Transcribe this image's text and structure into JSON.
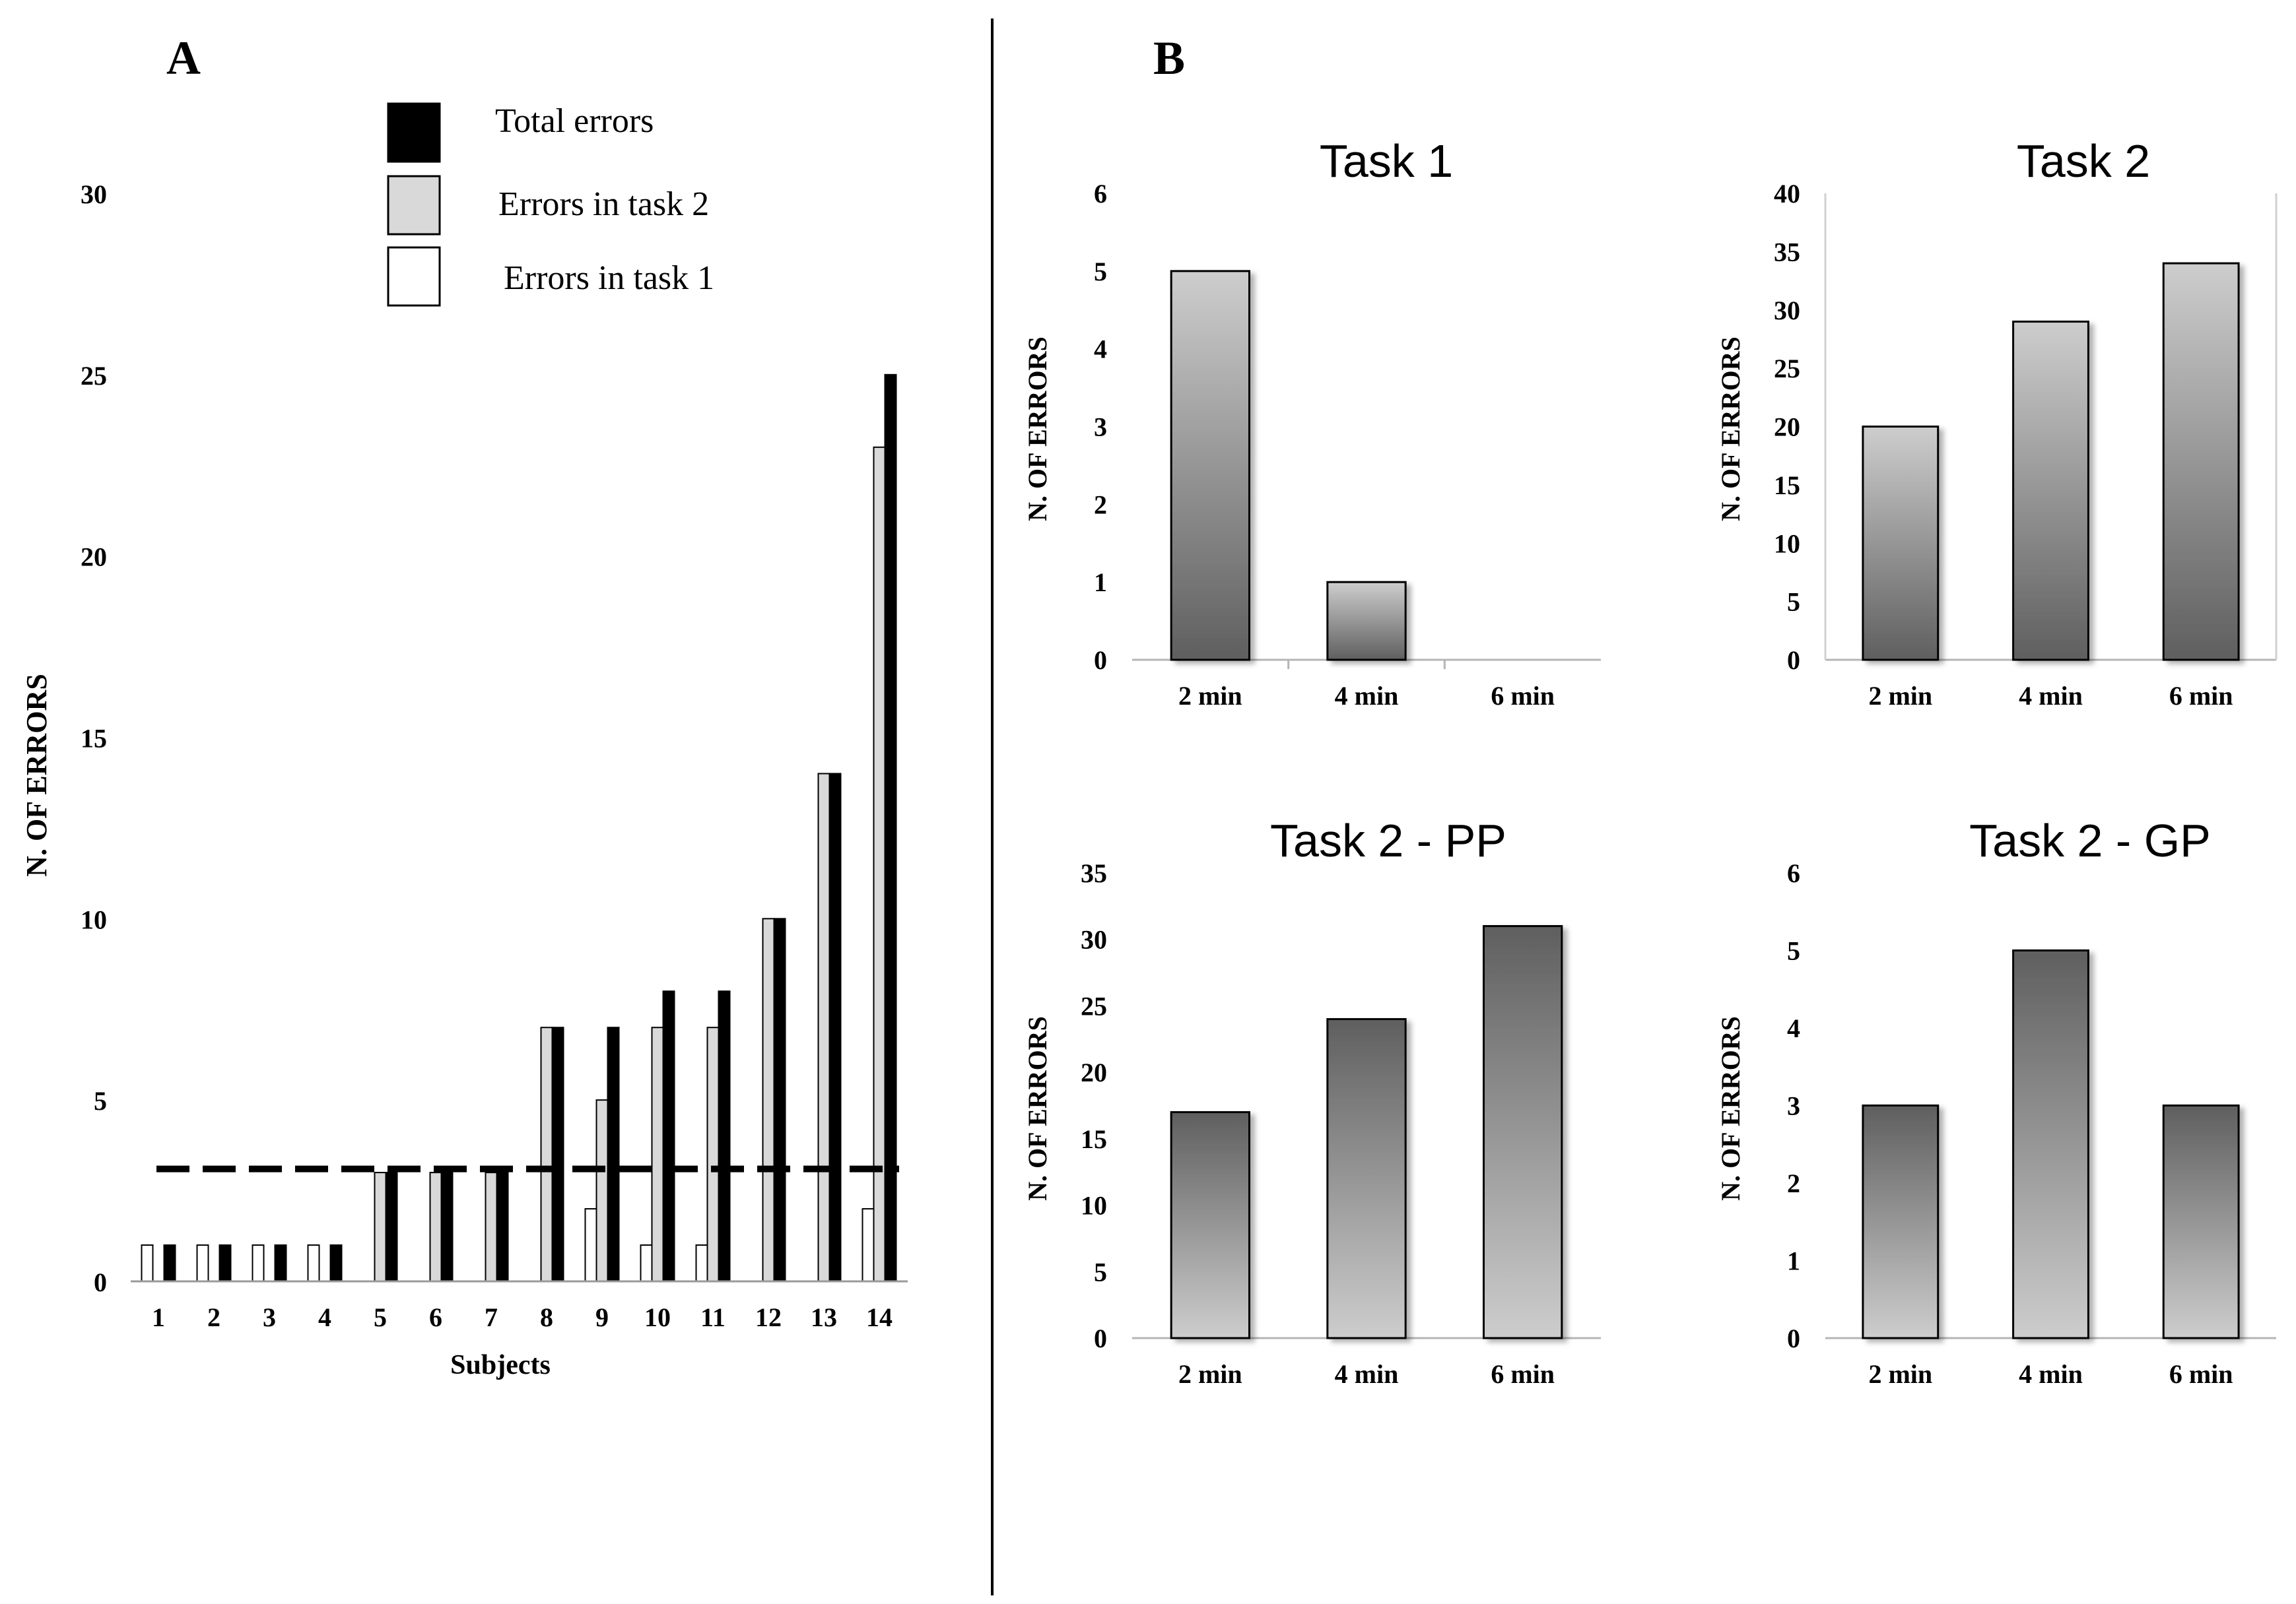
{
  "panel_a": {
    "label": "A",
    "chart_data": {
      "type": "bar",
      "title": "",
      "xlabel": "Subjects",
      "ylabel": "N. OF ERRORS",
      "ylim": [
        0,
        30
      ],
      "yticks": [
        "0",
        "5",
        "10",
        "15",
        "20",
        "25",
        "30"
      ],
      "categories": [
        "1",
        "2",
        "3",
        "4",
        "5",
        "6",
        "7",
        "8",
        "9",
        "10",
        "11",
        "12",
        "13",
        "14"
      ],
      "series": [
        {
          "name": "Errors in task 1",
          "color": "#ffffff",
          "values": [
            1,
            1,
            1,
            1,
            0,
            0,
            0,
            0,
            2,
            1,
            1,
            0,
            0,
            2
          ]
        },
        {
          "name": "Errors in task 2",
          "color": "#d9d9d9",
          "values": [
            0,
            0,
            0,
            0,
            3,
            3,
            3,
            7,
            5,
            7,
            7,
            10,
            14,
            23
          ]
        },
        {
          "name": "Total errors",
          "color": "#000000",
          "values": [
            1,
            1,
            1,
            1,
            3,
            3,
            3,
            7,
            7,
            8,
            8,
            10,
            14,
            25
          ]
        }
      ],
      "legend_order": [
        "Total errors",
        "Errors in task 2",
        "Errors in task 1"
      ],
      "legend_position": "top-center",
      "reference_line": {
        "value": 3.1,
        "style": "dashed"
      }
    }
  },
  "panel_b": {
    "label": "B",
    "chart_data": [
      {
        "type": "bar",
        "title": "Task 1",
        "ylabel": "N. OF ERRORS",
        "categories": [
          "2 min",
          "4 min",
          "6 min"
        ],
        "values": [
          5,
          1,
          0
        ],
        "ylim": [
          0,
          6
        ],
        "yticks": [
          "0",
          "1",
          "2",
          "3",
          "4",
          "5",
          "6"
        ],
        "gradient": "light-top"
      },
      {
        "type": "bar",
        "title": "Task 2",
        "ylabel": "N. OF ERRORS",
        "categories": [
          "2 min",
          "4 min",
          "6 min"
        ],
        "values": [
          20,
          29,
          34
        ],
        "ylim": [
          0,
          40
        ],
        "yticks": [
          "0",
          "5",
          "10",
          "15",
          "20",
          "25",
          "30",
          "35",
          "40"
        ],
        "gradient": "light-top"
      },
      {
        "type": "bar",
        "title": "Task 2 - PP",
        "ylabel": "N. OF ERRORS",
        "categories": [
          "2 min",
          "4 min",
          "6 min"
        ],
        "values": [
          17,
          24,
          31
        ],
        "ylim": [
          0,
          35
        ],
        "yticks": [
          "0",
          "5",
          "10",
          "15",
          "20",
          "25",
          "30",
          "35"
        ],
        "gradient": "dark-top"
      },
      {
        "type": "bar",
        "title": "Task 2 - GP",
        "ylabel": "N. OF ERRORS",
        "categories": [
          "2 min",
          "4 min",
          "6 min"
        ],
        "values": [
          3,
          5,
          3
        ],
        "ylim": [
          0,
          6
        ],
        "yticks": [
          "0",
          "1",
          "2",
          "3",
          "4",
          "5",
          "6"
        ],
        "gradient": "dark-top"
      }
    ]
  }
}
